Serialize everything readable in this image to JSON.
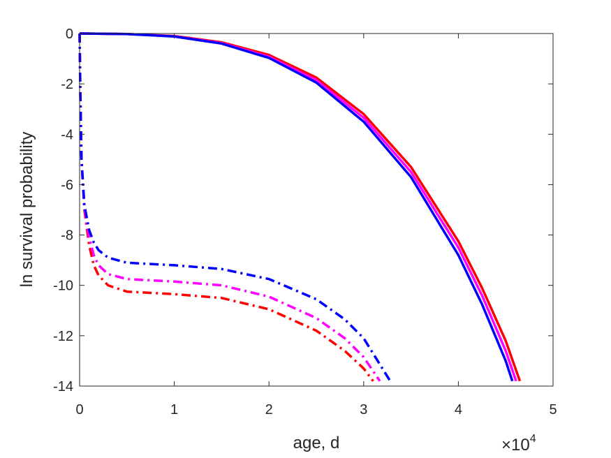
{
  "chart_data": {
    "type": "line",
    "xlabel": "age, d",
    "ylabel": "ln survival probability",
    "x_exponent_label": {
      "base": "×10",
      "exp": "4"
    },
    "xlim": [
      0,
      50000
    ],
    "ylim": [
      -14,
      0
    ],
    "xticks": [
      0,
      10000,
      20000,
      30000,
      40000,
      50000
    ],
    "xtick_labels": [
      "0",
      "1",
      "2",
      "3",
      "4",
      "5"
    ],
    "yticks": [
      0,
      -2,
      -4,
      -6,
      -8,
      -10,
      -12,
      -14
    ],
    "ytick_labels": [
      "0",
      "-2",
      "-4",
      "-6",
      "-8",
      "-10",
      "-12",
      "-14"
    ],
    "grid": false,
    "legend": "none",
    "series": [
      {
        "color": "#ff0000",
        "style": "solid",
        "x": [
          0,
          5000,
          10000,
          15000,
          20000,
          25000,
          30000,
          35000,
          40000,
          42500,
          45000,
          46500
        ],
        "y": [
          0,
          -0.02,
          -0.1,
          -0.35,
          -0.85,
          -1.75,
          -3.2,
          -5.3,
          -8.25,
          -10.1,
          -12.2,
          -13.8
        ]
      },
      {
        "color": "#ff00ff",
        "style": "solid",
        "x": [
          0,
          5000,
          10000,
          15000,
          20000,
          25000,
          30000,
          35000,
          40000,
          42500,
          45000,
          46100
        ],
        "y": [
          0,
          -0.02,
          -0.11,
          -0.38,
          -0.92,
          -1.85,
          -3.35,
          -5.5,
          -8.5,
          -10.4,
          -12.6,
          -13.8
        ]
      },
      {
        "color": "#0000ff",
        "style": "solid",
        "x": [
          0,
          5000,
          10000,
          15000,
          20000,
          25000,
          30000,
          35000,
          40000,
          42500,
          45000,
          45700
        ],
        "y": [
          0,
          -0.02,
          -0.12,
          -0.4,
          -0.97,
          -1.95,
          -3.5,
          -5.7,
          -8.8,
          -10.75,
          -13.0,
          -13.8
        ]
      },
      {
        "color": "#ff0000",
        "style": "dashdot",
        "x": [
          0,
          80,
          200,
          500,
          1000,
          1500,
          2000,
          3000,
          5000,
          7500,
          10000,
          15000,
          20000,
          25000,
          28000,
          30000,
          31000
        ],
        "y": [
          0,
          -2.5,
          -5.0,
          -7.0,
          -8.4,
          -9.2,
          -9.6,
          -10.0,
          -10.25,
          -10.3,
          -10.35,
          -10.5,
          -10.95,
          -11.8,
          -12.6,
          -13.3,
          -13.8
        ]
      },
      {
        "color": "#ff00ff",
        "style": "dashdot",
        "x": [
          0,
          80,
          200,
          500,
          1000,
          1500,
          2000,
          3000,
          5000,
          7500,
          10000,
          15000,
          20000,
          25000,
          28000,
          30000,
          31700
        ],
        "y": [
          0,
          -2.5,
          -5.0,
          -6.9,
          -8.1,
          -8.8,
          -9.2,
          -9.55,
          -9.75,
          -9.8,
          -9.85,
          -10.0,
          -10.45,
          -11.3,
          -12.1,
          -12.85,
          -13.8
        ]
      },
      {
        "color": "#0000ff",
        "style": "dashdot",
        "x": [
          0,
          80,
          200,
          500,
          1000,
          1500,
          2000,
          3000,
          5000,
          7500,
          10000,
          15000,
          20000,
          25000,
          28000,
          30000,
          32800
        ],
        "y": [
          0,
          -2.5,
          -5.0,
          -6.8,
          -7.8,
          -8.3,
          -8.6,
          -8.9,
          -9.1,
          -9.15,
          -9.2,
          -9.35,
          -9.75,
          -10.55,
          -11.35,
          -12.1,
          -13.8
        ]
      }
    ]
  }
}
